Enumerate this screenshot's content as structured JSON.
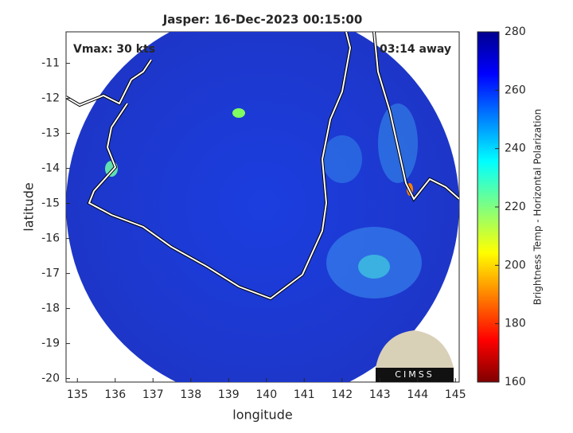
{
  "chart_data": {
    "type": "map",
    "title": "Jasper: 16-Dec-2023 00:15:00",
    "annotations": [
      "Vmax: 30 kts",
      "03:14 away"
    ],
    "xlabel": "longitude",
    "ylabel": "latitude",
    "xlim": [
      134.7,
      145.1
    ],
    "xticks": [
      135,
      136,
      137,
      138,
      139,
      140,
      141,
      142,
      143,
      144,
      145
    ],
    "ylim": [
      -20.1,
      -10.1
    ],
    "yticks": [
      -20,
      -19,
      -18,
      -17,
      -16,
      -15,
      -14,
      -13,
      -12,
      -11
    ],
    "colorbar": {
      "label": "Brightness Temp - Horizontal Polarization",
      "lim": [
        160,
        280
      ],
      "ticks": [
        160,
        180,
        200,
        220,
        240,
        260,
        280
      ]
    },
    "logo": "CIMSS"
  }
}
